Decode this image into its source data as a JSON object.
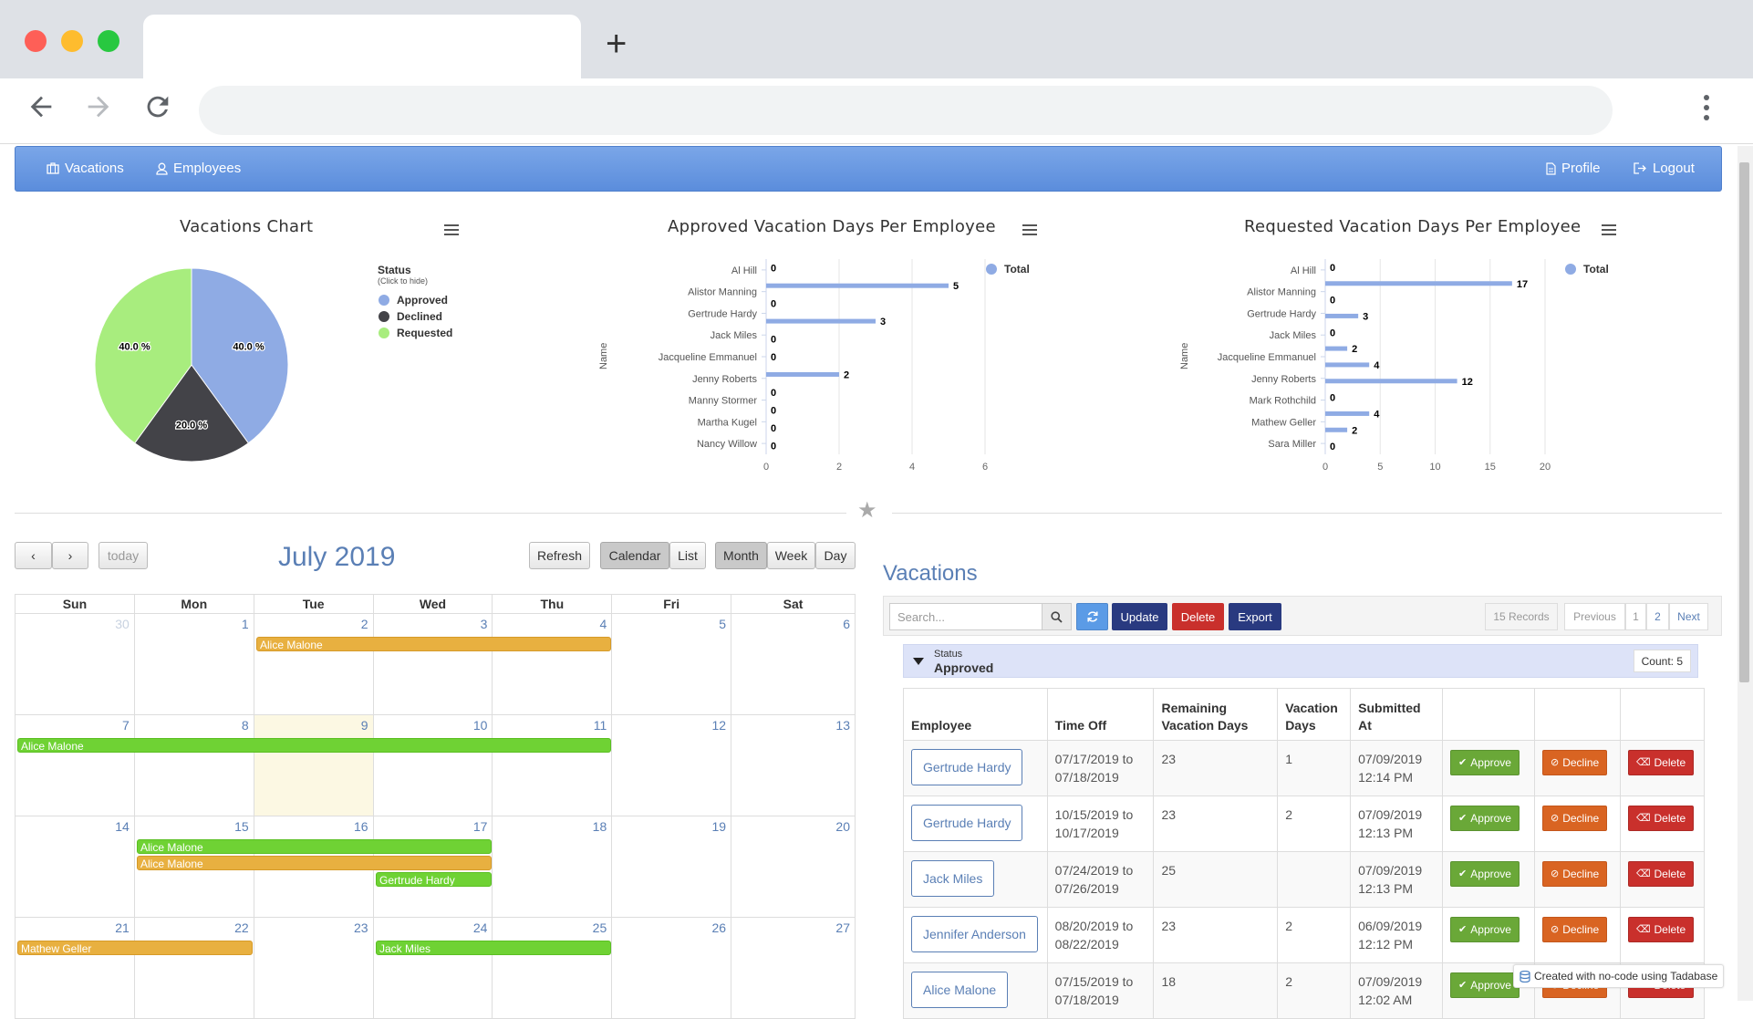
{
  "browser": {
    "new_tab_glyph": "+"
  },
  "navbar": {
    "vacations": "Vacations",
    "employees": "Employees",
    "profile": "Profile",
    "logout": "Logout"
  },
  "pie_chart": {
    "title": "Vacations Chart",
    "legend_title": "Status",
    "legend_subtitle": "(Click to hide)",
    "legend": [
      "Approved",
      "Declined",
      "Requested"
    ],
    "colors": [
      "#8fabe4",
      "#434348",
      "#a8ed7e"
    ]
  },
  "approved_chart": {
    "title": "Approved Vacation Days Per Employee",
    "ylabel": "Name",
    "legend": "Total"
  },
  "requested_chart": {
    "title": "Requested Vacation Days Per Employee",
    "ylabel": "Name",
    "legend": "Total"
  },
  "chart_data": [
    {
      "type": "pie",
      "title": "Vacations Chart",
      "categories": [
        "Approved",
        "Declined",
        "Requested"
      ],
      "values": [
        40.0,
        20.0,
        40.0
      ],
      "labels": [
        "40.0 %",
        "20.0 %",
        "40.0 %"
      ],
      "legend_placement": "right"
    },
    {
      "type": "bar",
      "orientation": "horizontal",
      "title": "Approved Vacation Days Per Employee",
      "ylabel": "Name",
      "categories": [
        "Al Hill",
        "Alistor Manning",
        "Gertrude Hardy",
        "Jack Miles",
        "Jacqueline Emmanuel",
        "Jenny Roberts",
        "Manny Stormer",
        "Martha Kugel",
        "Nancy Willow"
      ],
      "series": [
        {
          "name": "Total",
          "points": [
            [
              "Al Hill",
              0
            ],
            [
              "Al Hill",
              5
            ],
            [
              "Alistor Manning",
              0
            ],
            [
              "Gertrude Hardy",
              3
            ],
            [
              "Gertrude Hardy",
              0
            ],
            [
              "Jack Miles",
              0
            ],
            [
              "Jacqueline Emmanuel",
              2
            ],
            [
              "Jenny Roberts",
              0
            ],
            [
              "Manny Stormer",
              0
            ],
            [
              "Martha Kugel",
              0
            ],
            [
              "Nancy Willow",
              0
            ]
          ]
        }
      ],
      "xticks": [
        0,
        2,
        4,
        6
      ],
      "xlim": [
        0,
        6
      ],
      "legend_placement": "top-right"
    },
    {
      "type": "bar",
      "orientation": "horizontal",
      "title": "Requested Vacation Days Per Employee",
      "ylabel": "Name",
      "categories": [
        "Al Hill",
        "Alistor Manning",
        "Gertrude Hardy",
        "Jack Miles",
        "Jacqueline Emmanuel",
        "Jenny Roberts",
        "Mark Rothchild",
        "Mathew Geller",
        "Sara Miller"
      ],
      "series": [
        {
          "name": "Total",
          "points": [
            [
              "Al Hill",
              0
            ],
            [
              "Al Hill",
              17
            ],
            [
              "Alistor Manning",
              0
            ],
            [
              "Gertrude Hardy",
              3
            ],
            [
              "Gertrude Hardy",
              0
            ],
            [
              "Jacqueline Emmanuel",
              2
            ],
            [
              "Jenny Roberts",
              4
            ],
            [
              "Jenny Roberts",
              12
            ],
            [
              "Mark Rothchild",
              0
            ],
            [
              "Mathew Geller",
              4
            ],
            [
              "Mathew Geller",
              2
            ],
            [
              "Mathew Geller",
              0
            ]
          ]
        }
      ],
      "xticks": [
        0,
        5,
        10,
        15,
        20
      ],
      "xlim": [
        0,
        20
      ],
      "legend_placement": "top-right"
    }
  ],
  "calendar": {
    "prev": "‹",
    "next": "›",
    "today": "today",
    "title": "July 2019",
    "refresh": "Refresh",
    "view_calendar": "Calendar",
    "view_list": "List",
    "month": "Month",
    "week": "Week",
    "day": "Day",
    "weekdays": [
      "Sun",
      "Mon",
      "Tue",
      "Wed",
      "Thu",
      "Fri",
      "Sat"
    ],
    "weeks": [
      [
        "30",
        "1",
        "2",
        "3",
        "4",
        "5",
        "6"
      ],
      [
        "7",
        "8",
        "9",
        "10",
        "11",
        "12",
        "13"
      ],
      [
        "14",
        "15",
        "16",
        "17",
        "18",
        "19",
        "20"
      ],
      [
        "21",
        "22",
        "23",
        "24",
        "25",
        "26",
        "27"
      ]
    ],
    "events": [
      {
        "label": "Alice Malone",
        "color": "orange",
        "week": 0,
        "start": 2,
        "end": 4,
        "row": 0
      },
      {
        "label": "Alice Malone",
        "color": "green",
        "week": 1,
        "start": 0,
        "end": 4,
        "row": 0
      },
      {
        "label": "Alice Malone",
        "color": "green",
        "week": 2,
        "start": 1,
        "end": 3,
        "row": 0
      },
      {
        "label": "Alice Malone",
        "color": "orange",
        "week": 2,
        "start": 1,
        "end": 3,
        "row": 1
      },
      {
        "label": "Gertrude Hardy",
        "color": "green",
        "week": 2,
        "start": 3,
        "end": 3,
        "row": 2
      },
      {
        "label": "Mathew Geller",
        "color": "orange",
        "week": 3,
        "start": 0,
        "end": 1,
        "row": 0
      },
      {
        "label": "Jack Miles",
        "color": "green",
        "week": 3,
        "start": 3,
        "end": 4,
        "row": 0
      }
    ]
  },
  "vacations": {
    "title": "Vacations",
    "search_placeholder": "Search...",
    "update": "Update",
    "delete": "Delete",
    "export": "Export",
    "records": "15 Records",
    "previous": "Previous",
    "page1": "1",
    "page2": "2",
    "next": "Next",
    "group_label": "Status",
    "group_value": "Approved",
    "count": "Count: 5",
    "columns": [
      "Employee",
      "Time Off",
      "Remaining Vacation Days",
      "Vacation Days",
      "Submitted At"
    ],
    "approve_label": "Approve",
    "decline_label": "Decline",
    "delete_label": "Delete",
    "rows": [
      {
        "employee": "Gertrude Hardy",
        "time_off": "07/17/2019 to 07/18/2019",
        "remaining": "23",
        "days": "1",
        "submitted": "07/09/2019 12:14 PM"
      },
      {
        "employee": "Gertrude Hardy",
        "time_off": "10/15/2019 to 10/17/2019",
        "remaining": "23",
        "days": "2",
        "submitted": "07/09/2019 12:13 PM"
      },
      {
        "employee": "Jack Miles",
        "time_off": "07/24/2019 to 07/26/2019",
        "remaining": "25",
        "days": "",
        "submitted": "07/09/2019 12:13 PM"
      },
      {
        "employee": "Jennifer Anderson",
        "time_off": "08/20/2019 to 08/22/2019",
        "remaining": "23",
        "days": "2",
        "submitted": "06/09/2019 12:12 PM"
      },
      {
        "employee": "Alice Malone",
        "time_off": "07/15/2019 to 07/18/2019",
        "remaining": "18",
        "days": "2",
        "submitted": "07/09/2019 12:02 AM"
      }
    ]
  },
  "badge": {
    "text": "Created with no-code using Tadabase"
  }
}
